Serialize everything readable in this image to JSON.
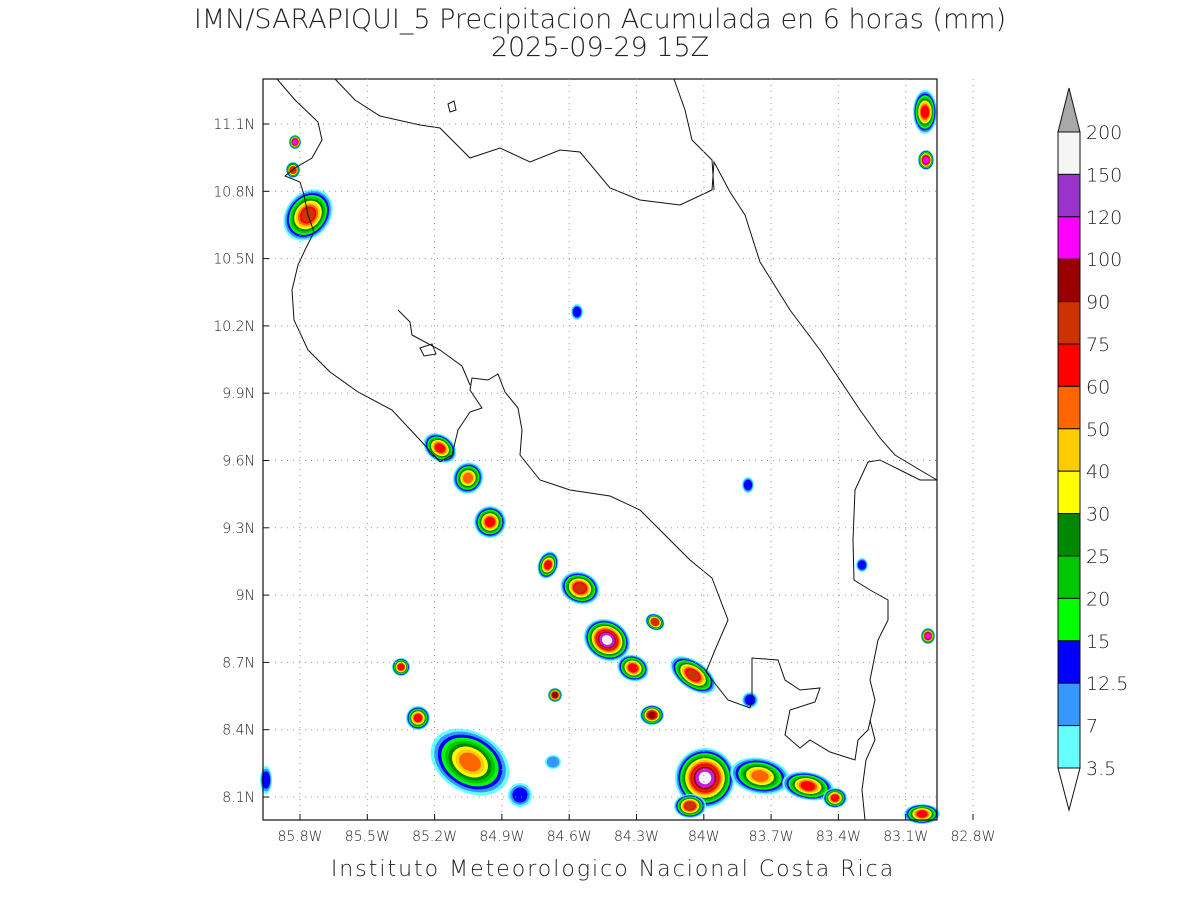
{
  "title": {
    "line1": "IMN/SARAPIQUI_5 Precipitacion Acumulada en 6 horas (mm)",
    "line2": "2025-09-29 15Z"
  },
  "map": {
    "lat_labels": [
      "11.1N",
      "10.8N",
      "10.5N",
      "10.2N",
      "9.9N",
      "9.6N",
      "9.3N",
      "9N",
      "8.7N",
      "8.4N",
      "8.1N"
    ],
    "lon_labels": [
      "85.8W",
      "85.5W",
      "85.2W",
      "84.9W",
      "84.6W",
      "84.3W",
      "84W",
      "83.7W",
      "83.4W",
      "83.1W",
      "82.8W"
    ]
  },
  "colorbar": {
    "labels": [
      200,
      150,
      120,
      100,
      90,
      75,
      60,
      50,
      40,
      30,
      25,
      20,
      15,
      12.5,
      7,
      3.5
    ],
    "colors": [
      "#f5f5f5",
      "#9933cc",
      "#ff00ff",
      "#990000",
      "#cc3300",
      "#ff0000",
      "#ff6600",
      "#ffcc00",
      "#ffff00",
      "#008800",
      "#00c800",
      "#00ff00",
      "#0000ff",
      "#3399ff",
      "#66ffff"
    ],
    "above_color": "#a8a8a8",
    "below_color": "#ffffff"
  },
  "footer": "Instituto Meteorologico Nacional Costa Rica"
}
